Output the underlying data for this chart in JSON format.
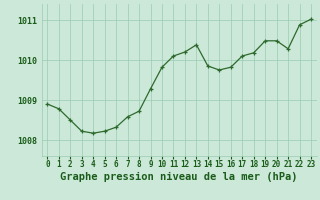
{
  "x": [
    0,
    1,
    2,
    3,
    4,
    5,
    6,
    7,
    8,
    9,
    10,
    11,
    12,
    13,
    14,
    15,
    16,
    17,
    18,
    19,
    20,
    21,
    22,
    23
  ],
  "y": [
    1008.9,
    1008.78,
    1008.5,
    1008.22,
    1008.17,
    1008.22,
    1008.32,
    1008.58,
    1008.72,
    1009.28,
    1009.82,
    1010.1,
    1010.2,
    1010.38,
    1009.85,
    1009.75,
    1009.82,
    1010.1,
    1010.18,
    1010.48,
    1010.48,
    1010.28,
    1010.88,
    1011.02
  ],
  "line_color": "#2d6a2d",
  "marker_color": "#2d6a2d",
  "bg_color": "#cce8d8",
  "grid_color": "#99ccb3",
  "xlabel": "Graphe pression niveau de la mer (hPa)",
  "xlabel_color": "#1a5c1a",
  "ylim": [
    1007.6,
    1011.4
  ],
  "yticks": [
    1008,
    1009,
    1010,
    1011
  ],
  "xtick_labels": [
    "0",
    "1",
    "2",
    "3",
    "4",
    "5",
    "6",
    "7",
    "8",
    "9",
    "10",
    "11",
    "12",
    "13",
    "14",
    "15",
    "16",
    "17",
    "18",
    "19",
    "20",
    "21",
    "22",
    "23"
  ],
  "tick_label_color": "#1a5c1a",
  "tick_label_fontsize": 5.5,
  "xlabel_fontsize": 7.5,
  "ytick_fontsize": 6.0
}
